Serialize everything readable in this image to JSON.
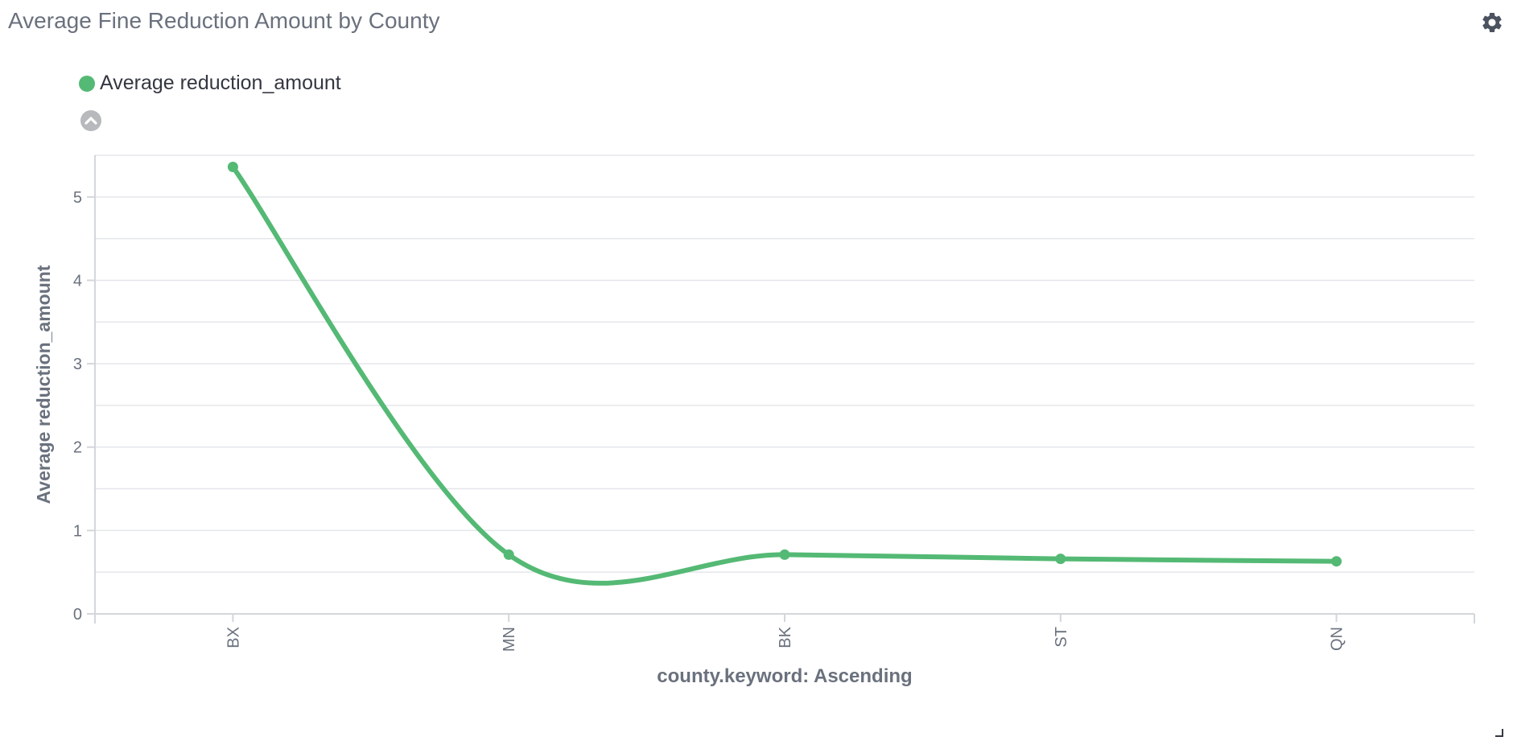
{
  "panel": {
    "title": "Average Fine Reduction Amount by County",
    "settings_icon": "gear-icon"
  },
  "legend": {
    "toggle_icon": "chevron-up-icon",
    "items": [
      {
        "label": "Average reduction_amount",
        "color": "#54b974"
      }
    ]
  },
  "chart_data": {
    "type": "line",
    "title": "Average Fine Reduction Amount by County",
    "xlabel": "county.keyword: Ascending",
    "ylabel": "Average reduction_amount",
    "categories": [
      "BX",
      "MN",
      "BK",
      "ST",
      "QN"
    ],
    "series": [
      {
        "name": "Average reduction_amount",
        "color": "#54b974",
        "values": [
          5.36,
          0.71,
          0.71,
          0.66,
          0.63
        ]
      }
    ],
    "ylim": [
      0,
      5.5
    ],
    "yticks": [
      0,
      1,
      2,
      3,
      4,
      5
    ],
    "grid": true,
    "curve": "smooth",
    "legend_position": "top-left"
  }
}
